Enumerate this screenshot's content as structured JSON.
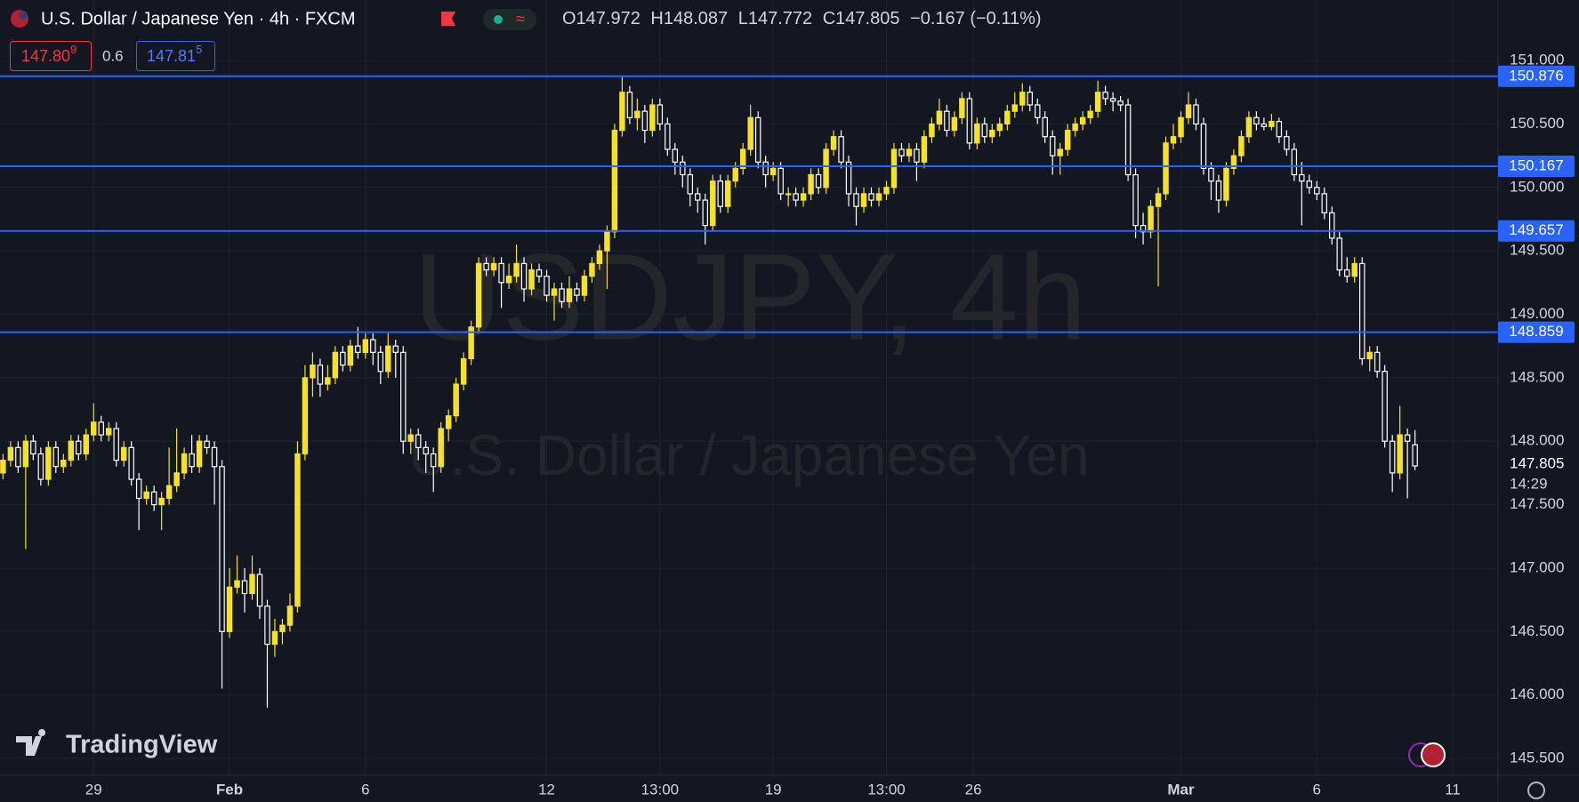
{
  "header": {
    "title": "U.S. Dollar / Japanese Yen · 4h · FXCM",
    "ohlc_letters": [
      "O",
      "H",
      "L",
      "C"
    ],
    "change": "−0.167 (−0.11%)",
    "bid_main": "147.80",
    "bid_pip": "9",
    "spread": "0.6",
    "ask_main": "147.81",
    "ask_pip": "5"
  },
  "branding": "TradingView",
  "countdown": "14:29",
  "chart_data": {
    "type": "candlestick",
    "watermark_symbol": "USDJPY, 4h",
    "watermark_description": "U.S. Dollar / Japanese Yen",
    "up_color": "#f5e02a",
    "down_color": "#ffffff",
    "level_color": "#2962ff",
    "grid": true,
    "ylim": [
      145.367,
      151.477
    ],
    "yticks": [
      {
        "value": 145.5,
        "label": "145.500"
      },
      {
        "value": 146,
        "label": "146.000"
      },
      {
        "value": 146.5,
        "label": "146.500"
      },
      {
        "value": 147,
        "label": "147.000"
      },
      {
        "value": 147.5,
        "label": "147.500"
      },
      {
        "value": 148,
        "label": "148.000"
      },
      {
        "value": 148.5,
        "label": "148.500"
      },
      {
        "value": 149,
        "label": "149.000"
      },
      {
        "value": 149.5,
        "label": "149.500"
      },
      {
        "value": 150,
        "label": "150.000"
      },
      {
        "value": 150.5,
        "label": "150.500"
      },
      {
        "value": 151,
        "label": "151.000"
      }
    ],
    "xlim": [
      -0.4,
      198
    ],
    "xticks": [
      {
        "value": 12,
        "label": "29"
      },
      {
        "value": 30,
        "label": "Feb"
      },
      {
        "value": 48,
        "label": "6"
      },
      {
        "value": 72,
        "label": "12"
      },
      {
        "value": 87,
        "label": "13:00"
      },
      {
        "value": 102,
        "label": "19"
      },
      {
        "value": 117,
        "label": "13:00"
      },
      {
        "value": 128.5,
        "label": "26"
      },
      {
        "value": 156,
        "label": "Mar"
      },
      {
        "value": 174,
        "label": "6"
      },
      {
        "value": 192,
        "label": "11"
      }
    ],
    "levels": [
      150.876,
      150.167,
      149.657,
      148.859
    ],
    "candles": [
      [
        147.75,
        147.9,
        147.7,
        147.85
      ],
      [
        147.85,
        148.0,
        147.8,
        147.95
      ],
      [
        147.95,
        148.0,
        147.75,
        147.8
      ],
      [
        147.8,
        148.05,
        147.15,
        148.0
      ],
      [
        148.0,
        148.05,
        147.85,
        147.9
      ],
      [
        147.9,
        147.95,
        147.65,
        147.7
      ],
      [
        147.7,
        148.0,
        147.65,
        147.95
      ],
      [
        147.95,
        148.0,
        147.75,
        147.8
      ],
      [
        147.8,
        147.9,
        147.75,
        147.85
      ],
      [
        147.85,
        148.05,
        147.8,
        148.0
      ],
      [
        148.0,
        148.05,
        147.85,
        147.9
      ],
      [
        147.9,
        148.1,
        147.85,
        148.05
      ],
      [
        148.05,
        148.3,
        148.0,
        148.15
      ],
      [
        148.15,
        148.2,
        148.0,
        148.05
      ],
      [
        148.05,
        148.15,
        148.0,
        148.1
      ],
      [
        148.1,
        148.15,
        147.8,
        147.85
      ],
      [
        147.85,
        148.0,
        147.8,
        147.95
      ],
      [
        147.95,
        148.0,
        147.65,
        147.7
      ],
      [
        147.7,
        147.75,
        147.3,
        147.55
      ],
      [
        147.55,
        147.65,
        147.5,
        147.6
      ],
      [
        147.6,
        147.65,
        147.45,
        147.5
      ],
      [
        147.5,
        147.6,
        147.3,
        147.55
      ],
      [
        147.55,
        147.95,
        147.5,
        147.65
      ],
      [
        147.65,
        148.1,
        147.6,
        147.75
      ],
      [
        147.75,
        147.95,
        147.7,
        147.9
      ],
      [
        147.9,
        148.05,
        147.75,
        147.8
      ],
      [
        147.8,
        148.05,
        147.75,
        148.0
      ],
      [
        148.0,
        148.05,
        147.9,
        147.95
      ],
      [
        147.95,
        148.0,
        147.5,
        147.8
      ],
      [
        147.8,
        147.85,
        146.05,
        146.5
      ],
      [
        146.5,
        147.0,
        146.45,
        146.85
      ],
      [
        146.85,
        147.1,
        146.8,
        146.9
      ],
      [
        146.9,
        147.0,
        146.65,
        146.8
      ],
      [
        146.8,
        147.1,
        146.75,
        146.95
      ],
      [
        146.95,
        147.0,
        146.6,
        146.7
      ],
      [
        146.7,
        146.75,
        145.9,
        146.4
      ],
      [
        146.4,
        146.6,
        146.3,
        146.5
      ],
      [
        146.5,
        146.6,
        146.4,
        146.55
      ],
      [
        146.55,
        146.8,
        146.5,
        146.7
      ],
      [
        146.7,
        148.0,
        146.65,
        147.9
      ],
      [
        147.9,
        148.6,
        147.85,
        148.5
      ],
      [
        148.5,
        148.7,
        148.35,
        148.6
      ],
      [
        148.6,
        148.65,
        148.35,
        148.45
      ],
      [
        148.45,
        148.6,
        148.4,
        148.5
      ],
      [
        148.5,
        148.75,
        148.45,
        148.7
      ],
      [
        148.7,
        148.75,
        148.55,
        148.6
      ],
      [
        148.6,
        148.8,
        148.55,
        148.75
      ],
      [
        148.75,
        148.9,
        148.65,
        148.7
      ],
      [
        148.7,
        148.85,
        148.65,
        148.8
      ],
      [
        148.8,
        148.85,
        148.6,
        148.7
      ],
      [
        148.7,
        148.75,
        148.45,
        148.55
      ],
      [
        148.55,
        148.85,
        148.5,
        148.75
      ],
      [
        148.75,
        148.8,
        148.5,
        148.7
      ],
      [
        148.7,
        148.75,
        147.9,
        148.0
      ],
      [
        148.0,
        148.1,
        147.9,
        148.05
      ],
      [
        148.05,
        148.1,
        147.85,
        147.95
      ],
      [
        147.95,
        148.0,
        147.75,
        147.9
      ],
      [
        147.9,
        147.95,
        147.6,
        147.8
      ],
      [
        147.8,
        148.15,
        147.75,
        148.1
      ],
      [
        148.1,
        148.25,
        148.0,
        148.2
      ],
      [
        148.2,
        148.5,
        148.15,
        148.45
      ],
      [
        148.45,
        148.7,
        148.4,
        148.65
      ],
      [
        148.65,
        148.95,
        148.6,
        148.9
      ],
      [
        148.9,
        149.45,
        148.85,
        149.4
      ],
      [
        149.4,
        149.45,
        149.3,
        149.35
      ],
      [
        149.35,
        149.45,
        149.3,
        149.4
      ],
      [
        149.4,
        149.45,
        149.05,
        149.25
      ],
      [
        149.25,
        149.4,
        149.2,
        149.3
      ],
      [
        149.3,
        149.55,
        149.25,
        149.4
      ],
      [
        149.4,
        149.45,
        149.1,
        149.2
      ],
      [
        149.2,
        149.4,
        149.15,
        149.35
      ],
      [
        149.35,
        149.4,
        149.25,
        149.3
      ],
      [
        149.3,
        149.35,
        149.1,
        149.15
      ],
      [
        149.15,
        149.25,
        148.95,
        149.2
      ],
      [
        149.2,
        149.25,
        149.05,
        149.1
      ],
      [
        149.1,
        149.3,
        149.05,
        149.2
      ],
      [
        149.2,
        149.25,
        149.1,
        149.15
      ],
      [
        149.15,
        149.35,
        149.1,
        149.3
      ],
      [
        149.3,
        149.45,
        149.25,
        149.4
      ],
      [
        149.4,
        149.55,
        149.35,
        149.5
      ],
      [
        149.5,
        149.7,
        149.2,
        149.65
      ],
      [
        149.65,
        150.5,
        149.6,
        150.45
      ],
      [
        150.45,
        150.88,
        150.4,
        150.75
      ],
      [
        150.75,
        150.8,
        150.5,
        150.55
      ],
      [
        150.55,
        150.7,
        150.45,
        150.6
      ],
      [
        150.6,
        150.65,
        150.35,
        150.45
      ],
      [
        150.45,
        150.7,
        150.4,
        150.65
      ],
      [
        150.65,
        150.7,
        150.45,
        150.5
      ],
      [
        150.5,
        150.55,
        150.25,
        150.3
      ],
      [
        150.3,
        150.35,
        150.1,
        150.2
      ],
      [
        150.2,
        150.25,
        150.0,
        150.1
      ],
      [
        150.1,
        150.15,
        149.85,
        149.95
      ],
      [
        149.95,
        150.0,
        149.8,
        149.9
      ],
      [
        149.9,
        149.95,
        149.55,
        149.7
      ],
      [
        149.7,
        150.1,
        149.65,
        150.05
      ],
      [
        150.05,
        150.1,
        149.8,
        149.85
      ],
      [
        149.85,
        150.1,
        149.8,
        150.05
      ],
      [
        150.05,
        150.2,
        150.0,
        150.15
      ],
      [
        150.15,
        150.35,
        150.1,
        150.3
      ],
      [
        150.3,
        150.65,
        150.25,
        150.55
      ],
      [
        150.55,
        150.6,
        150.15,
        150.2
      ],
      [
        150.2,
        150.25,
        150.0,
        150.1
      ],
      [
        150.1,
        150.2,
        150.05,
        150.15
      ],
      [
        150.15,
        150.2,
        149.9,
        149.95
      ],
      [
        149.95,
        150.0,
        149.85,
        149.95
      ],
      [
        149.95,
        150.0,
        149.85,
        149.9
      ],
      [
        149.9,
        150.0,
        149.85,
        149.95
      ],
      [
        149.95,
        150.15,
        149.9,
        150.1
      ],
      [
        150.1,
        150.15,
        149.95,
        150.0
      ],
      [
        150.0,
        150.35,
        149.95,
        150.3
      ],
      [
        150.3,
        150.45,
        150.25,
        150.4
      ],
      [
        150.4,
        150.45,
        150.15,
        150.2
      ],
      [
        150.2,
        150.25,
        149.85,
        149.95
      ],
      [
        149.95,
        150.0,
        149.7,
        149.85
      ],
      [
        149.85,
        150.0,
        149.8,
        149.95
      ],
      [
        149.95,
        150.0,
        149.85,
        149.9
      ],
      [
        149.9,
        150.0,
        149.85,
        149.95
      ],
      [
        149.95,
        150.05,
        149.9,
        150.0
      ],
      [
        150.0,
        150.35,
        149.95,
        150.3
      ],
      [
        150.3,
        150.35,
        150.2,
        150.25
      ],
      [
        150.25,
        150.35,
        150.2,
        150.3
      ],
      [
        150.3,
        150.35,
        150.05,
        150.2
      ],
      [
        150.2,
        150.45,
        150.15,
        150.4
      ],
      [
        150.4,
        150.55,
        150.35,
        150.5
      ],
      [
        150.5,
        150.7,
        150.45,
        150.6
      ],
      [
        150.6,
        150.65,
        150.4,
        150.45
      ],
      [
        150.45,
        150.6,
        150.4,
        150.55
      ],
      [
        150.55,
        150.75,
        150.5,
        150.7
      ],
      [
        150.7,
        150.75,
        150.3,
        150.35
      ],
      [
        150.35,
        150.55,
        150.3,
        150.5
      ],
      [
        150.5,
        150.55,
        150.35,
        150.4
      ],
      [
        150.4,
        150.5,
        150.35,
        150.45
      ],
      [
        150.45,
        150.55,
        150.4,
        150.5
      ],
      [
        150.5,
        150.65,
        150.45,
        150.6
      ],
      [
        150.6,
        150.75,
        150.55,
        150.65
      ],
      [
        150.65,
        150.82,
        150.6,
        150.75
      ],
      [
        150.75,
        150.8,
        150.6,
        150.65
      ],
      [
        150.65,
        150.7,
        150.5,
        150.55
      ],
      [
        150.55,
        150.6,
        150.35,
        150.4
      ],
      [
        150.4,
        150.45,
        150.1,
        150.25
      ],
      [
        150.25,
        150.35,
        150.1,
        150.3
      ],
      [
        150.3,
        150.5,
        150.25,
        150.45
      ],
      [
        150.45,
        150.55,
        150.4,
        150.5
      ],
      [
        150.5,
        150.6,
        150.45,
        150.55
      ],
      [
        150.55,
        150.65,
        150.5,
        150.6
      ],
      [
        150.6,
        150.84,
        150.55,
        150.75
      ],
      [
        150.75,
        150.8,
        150.65,
        150.7
      ],
      [
        150.7,
        150.75,
        150.6,
        150.68
      ],
      [
        150.68,
        150.72,
        150.6,
        150.65
      ],
      [
        150.65,
        150.7,
        150.05,
        150.1
      ],
      [
        150.1,
        150.15,
        149.6,
        149.7
      ],
      [
        149.7,
        149.8,
        149.55,
        149.65
      ],
      [
        149.65,
        149.9,
        149.6,
        149.85
      ],
      [
        149.85,
        150.0,
        149.22,
        149.95
      ],
      [
        149.95,
        150.4,
        149.9,
        150.35
      ],
      [
        150.35,
        150.5,
        150.3,
        150.4
      ],
      [
        150.4,
        150.6,
        150.35,
        150.55
      ],
      [
        150.55,
        150.75,
        150.5,
        150.65
      ],
      [
        150.65,
        150.7,
        150.45,
        150.5
      ],
      [
        150.5,
        150.55,
        150.1,
        150.15
      ],
      [
        150.15,
        150.2,
        149.9,
        150.05
      ],
      [
        150.05,
        150.1,
        149.8,
        149.9
      ],
      [
        149.9,
        150.2,
        149.85,
        150.15
      ],
      [
        150.15,
        150.3,
        150.1,
        150.25
      ],
      [
        150.25,
        150.45,
        150.2,
        150.4
      ],
      [
        150.4,
        150.6,
        150.35,
        150.55
      ],
      [
        150.55,
        150.6,
        150.45,
        150.5
      ],
      [
        150.5,
        150.55,
        150.45,
        150.48
      ],
      [
        150.48,
        150.58,
        150.45,
        150.52
      ],
      [
        150.52,
        150.55,
        150.35,
        150.4
      ],
      [
        150.4,
        150.45,
        150.25,
        150.3
      ],
      [
        150.3,
        150.35,
        150.05,
        150.1
      ],
      [
        150.1,
        150.2,
        149.7,
        150.05
      ],
      [
        150.05,
        150.1,
        149.95,
        150.0
      ],
      [
        150.0,
        150.05,
        149.9,
        149.95
      ],
      [
        149.95,
        150.0,
        149.75,
        149.8
      ],
      [
        149.8,
        149.85,
        149.55,
        149.6
      ],
      [
        149.6,
        149.65,
        149.3,
        149.35
      ],
      [
        149.35,
        149.45,
        149.25,
        149.3
      ],
      [
        149.3,
        149.45,
        149.25,
        149.4
      ],
      [
        149.4,
        149.45,
        148.6,
        148.65
      ],
      [
        148.65,
        148.75,
        148.55,
        148.7
      ],
      [
        148.7,
        148.75,
        148.5,
        148.55
      ],
      [
        148.55,
        148.6,
        147.95,
        148.0
      ],
      [
        148.0,
        148.05,
        147.6,
        147.75
      ],
      [
        147.75,
        148.28,
        147.7,
        148.05
      ],
      [
        148.05,
        148.1,
        147.55,
        148.0
      ],
      [
        147.972,
        148.087,
        147.772,
        147.805
      ]
    ]
  }
}
